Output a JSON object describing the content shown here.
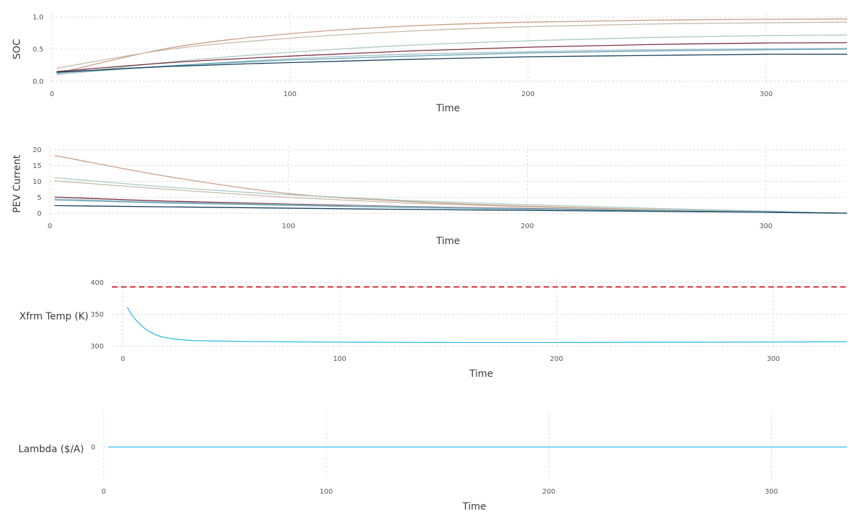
{
  "chart_data": [
    {
      "type": "line",
      "xlabel": "Time",
      "ylabel": "SOC",
      "xlim": [
        0,
        334
      ],
      "ylim": [
        -0.05,
        1.05
      ],
      "xticks": [
        0,
        100,
        200,
        300
      ],
      "yticks": [
        0.0,
        0.5,
        1.0
      ],
      "ytick_labels": [
        "0.0",
        "0.5",
        "1.0"
      ],
      "grid": true,
      "series": [
        {
          "color": "#c89a7e",
          "x": [
            2,
            50,
            100,
            150,
            200,
            250,
            300,
            334
          ],
          "values": [
            0.12,
            0.52,
            0.74,
            0.86,
            0.92,
            0.95,
            0.965,
            0.97
          ]
        },
        {
          "color": "#c6b8a6",
          "x": [
            2,
            50,
            100,
            150,
            200,
            250,
            300,
            334
          ],
          "values": [
            0.2,
            0.5,
            0.67,
            0.78,
            0.85,
            0.89,
            0.91,
            0.92
          ]
        },
        {
          "color": "#a9c7c2",
          "x": [
            2,
            50,
            100,
            150,
            200,
            250,
            300,
            334
          ],
          "values": [
            0.1,
            0.3,
            0.45,
            0.56,
            0.63,
            0.68,
            0.71,
            0.72
          ]
        },
        {
          "color": "#7c2b3a",
          "x": [
            2,
            50,
            100,
            150,
            200,
            250,
            300,
            334
          ],
          "values": [
            0.15,
            0.29,
            0.39,
            0.47,
            0.53,
            0.57,
            0.595,
            0.6
          ]
        },
        {
          "color": "#a3bfc8",
          "x": [
            2,
            50,
            100,
            150,
            200,
            250,
            300,
            334
          ],
          "values": [
            0.11,
            0.24,
            0.35,
            0.42,
            0.46,
            0.49,
            0.505,
            0.51
          ]
        },
        {
          "color": "#5da0b4",
          "x": [
            2,
            50,
            100,
            150,
            200,
            250,
            300,
            334
          ],
          "values": [
            0.13,
            0.24,
            0.33,
            0.39,
            0.44,
            0.47,
            0.49,
            0.5
          ]
        },
        {
          "color": "#103c57",
          "x": [
            2,
            50,
            100,
            150,
            200,
            250,
            300,
            334
          ],
          "values": [
            0.14,
            0.23,
            0.29,
            0.34,
            0.38,
            0.4,
            0.42,
            0.42
          ]
        }
      ]
    },
    {
      "type": "line",
      "xlabel": "Time",
      "ylabel": "PEV Current",
      "xlim": [
        0,
        334
      ],
      "ylim": [
        -1,
        21
      ],
      "xticks": [
        0,
        100,
        200,
        300
      ],
      "yticks": [
        0,
        5,
        10,
        15,
        20
      ],
      "ytick_labels": [
        "0",
        "5",
        "10",
        "15",
        "20"
      ],
      "grid": true,
      "series": [
        {
          "color": "#c89a7e",
          "x": [
            2,
            50,
            100,
            150,
            200,
            250,
            300,
            334
          ],
          "values": [
            18.2,
            11.5,
            6.2,
            3.7,
            2.2,
            1.2,
            0.5,
            0
          ]
        },
        {
          "color": "#a9c7c2",
          "x": [
            2,
            50,
            100,
            150,
            200,
            250,
            300,
            334
          ],
          "values": [
            11.2,
            8.2,
            5.8,
            4.0,
            2.7,
            1.6,
            0.7,
            0
          ]
        },
        {
          "color": "#c6b8a6",
          "x": [
            2,
            50,
            100,
            150,
            200,
            250,
            300,
            334
          ],
          "values": [
            10.2,
            7.5,
            5.0,
            3.2,
            2.0,
            1.1,
            0.5,
            0
          ]
        },
        {
          "color": "#7c2b3a",
          "x": [
            2,
            50,
            100,
            150,
            200,
            250,
            300,
            334
          ],
          "values": [
            5.1,
            3.8,
            2.9,
            2.1,
            1.5,
            0.9,
            0.4,
            0
          ]
        },
        {
          "color": "#a3bfc8",
          "x": [
            2,
            50,
            100,
            150,
            200,
            250,
            300,
            334
          ],
          "values": [
            4.5,
            3.5,
            2.7,
            2.0,
            1.4,
            0.9,
            0.5,
            0
          ]
        },
        {
          "color": "#5da0b4",
          "x": [
            2,
            50,
            100,
            150,
            200,
            250,
            300,
            334
          ],
          "values": [
            4.2,
            3.2,
            2.5,
            1.8,
            1.3,
            0.8,
            0.4,
            0
          ]
        },
        {
          "color": "#103c57",
          "x": [
            2,
            50,
            100,
            150,
            200,
            250,
            300,
            334
          ],
          "values": [
            2.4,
            2.0,
            1.6,
            1.2,
            0.9,
            0.6,
            0.3,
            0
          ]
        }
      ]
    },
    {
      "type": "line",
      "xlabel": "Time",
      "ylabel": "Xfrm Temp (K)",
      "xlim": [
        -5,
        334
      ],
      "ylim": [
        295,
        405
      ],
      "xticks": [
        0,
        100,
        200,
        300
      ],
      "yticks": [
        300,
        350,
        400
      ],
      "ytick_labels": [
        "300",
        "350",
        "400"
      ],
      "grid": true,
      "series": [
        {
          "color": "#2bb8e6",
          "x": [
            2,
            5,
            10,
            15,
            20,
            30,
            40,
            60,
            100,
            150,
            200,
            250,
            300,
            334
          ],
          "values": [
            361,
            345,
            328,
            318,
            313,
            309,
            308,
            307,
            306,
            305.5,
            305.5,
            305.8,
            306.3,
            306.7
          ]
        },
        {
          "color": "#e0303c",
          "dashed": true,
          "x": [
            -5,
            334
          ],
          "values": [
            393,
            393
          ]
        }
      ]
    },
    {
      "type": "line",
      "xlabel": "Time",
      "ylabel": "Lambda ($/A)",
      "xlim": [
        0,
        334
      ],
      "ylim": [
        -1,
        1
      ],
      "xticks": [
        0,
        100,
        200,
        300
      ],
      "yticks": [
        0
      ],
      "ytick_labels": [
        "0"
      ],
      "grid": true,
      "series": [
        {
          "color": "#2bb8e6",
          "x": [
            2,
            334
          ],
          "values": [
            0,
            0
          ]
        }
      ]
    }
  ]
}
